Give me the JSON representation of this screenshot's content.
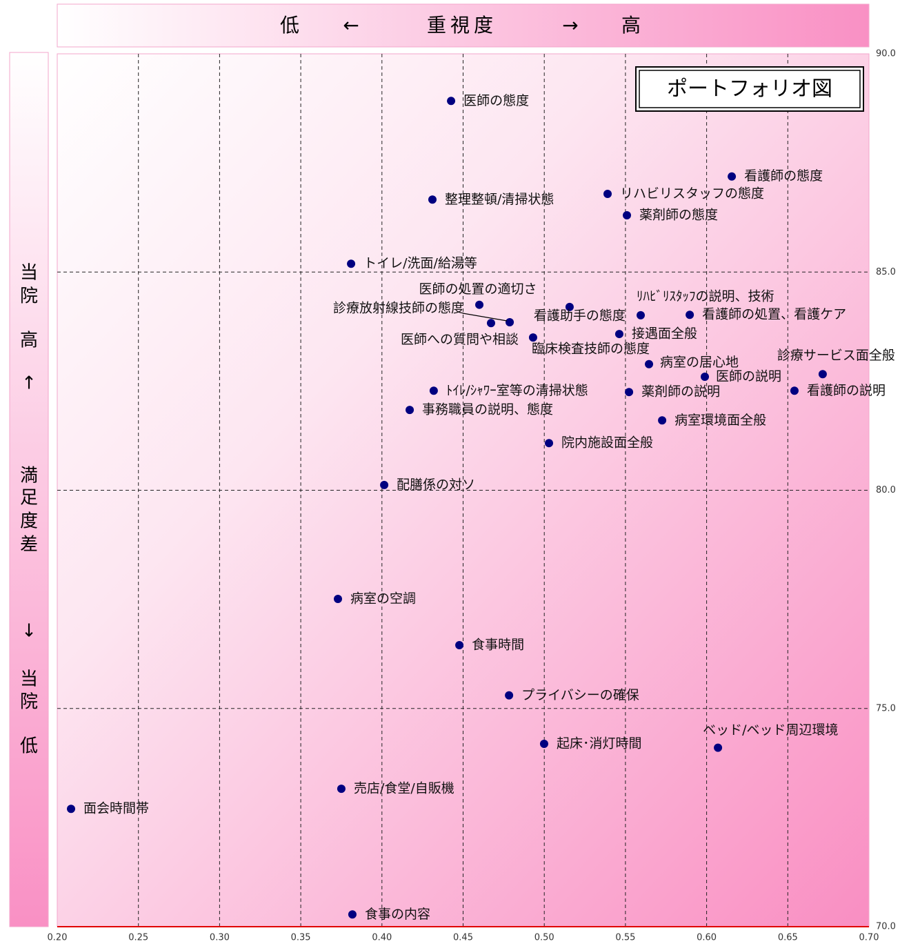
{
  "chart_data": {
    "type": "scatter",
    "title": "ポートフォリオ図",
    "x_axis_header": [
      "低",
      "←",
      "重視度",
      "→",
      "高"
    ],
    "y_axis_header": [
      "当",
      "院",
      "高",
      "↑",
      "満",
      "足",
      "度",
      "差",
      "↓",
      "当",
      "院",
      "低"
    ],
    "color": "#000080",
    "xlim": [
      0.2,
      0.7
    ],
    "xticks": [
      {
        "value": 0.2,
        "label": "0.20"
      },
      {
        "value": 0.25,
        "label": "0.25"
      },
      {
        "value": 0.3,
        "label": "0.30"
      },
      {
        "value": 0.35,
        "label": "0.35"
      },
      {
        "value": 0.4,
        "label": "0.40"
      },
      {
        "value": 0.45,
        "label": "0.45"
      },
      {
        "value": 0.5,
        "label": "0.50"
      },
      {
        "value": 0.55,
        "label": "0.55"
      },
      {
        "value": 0.6,
        "label": "0.60"
      },
      {
        "value": 0.65,
        "label": "0.65"
      },
      {
        "value": 0.7,
        "label": "0.70"
      }
    ],
    "ylim": [
      70,
      90
    ],
    "yticks": [
      {
        "value": 70,
        "label": "70.0"
      },
      {
        "value": 75,
        "label": "75.0"
      },
      {
        "value": 80,
        "label": "80.0"
      },
      {
        "value": 85,
        "label": "85.0"
      },
      {
        "value": 90,
        "label": "90.0"
      }
    ],
    "grid": true,
    "labels": [
      "医師の態度",
      "看護師の態度",
      "リハビリスタッフの態度",
      "整理整頓/清掃状態",
      "薬剤師の態度",
      "トイレ/洗面/給湯等",
      "医師の処置の適切さ",
      "診療放射線技師の態度",
      "医師への質問や相談",
      "看護助手の態度",
      "ﾘﾊﾋﾞﾘｽﾀｯﾌの説明、技術",
      "看護師の処置、看護ケア",
      "接遇面全般",
      "臨床検査技師の態度",
      "病室の居心地",
      "医師の説明",
      "診療サービス面全般",
      "看護師の説明",
      "ﾄｲﾚ/ｼｬﾜｰ室等の清掃状態",
      "薬剤師の説明",
      "事務職員の説明、態度",
      "病室環境面全般",
      "院内施設面全般",
      "配膳係の対ソ",
      "病室の空調",
      "食事時間",
      "プライバシーの確保",
      "起床･消灯時間",
      "ベッド/ベッド周辺環境",
      "売店/食堂/自販機",
      "面会時間帯",
      "食事の内容"
    ],
    "x": [
      0.4426,
      0.6155,
      0.539,
      0.4311,
      0.5509,
      0.381,
      0.46,
      0.4787,
      0.4672,
      0.5156,
      0.5594,
      0.5896,
      0.5462,
      0.4931,
      0.5645,
      0.5989,
      0.6715,
      0.6541,
      0.4319,
      0.5522,
      0.4171,
      0.5726,
      0.5029,
      0.4014,
      0.3729,
      0.4477,
      0.4783,
      0.4999,
      0.607,
      0.375,
      0.2085,
      0.3818
    ],
    "y": [
      88.92,
      87.19,
      86.79,
      86.66,
      86.3,
      85.19,
      84.25,
      83.85,
      83.83,
      84.2,
      84.01,
      84.02,
      83.58,
      83.5,
      82.89,
      82.6,
      82.66,
      82.28,
      82.28,
      82.25,
      81.84,
      81.6,
      81.08,
      80.12,
      77.51,
      76.45,
      75.3,
      74.19,
      74.1,
      73.16,
      72.7,
      70.28
    ]
  }
}
